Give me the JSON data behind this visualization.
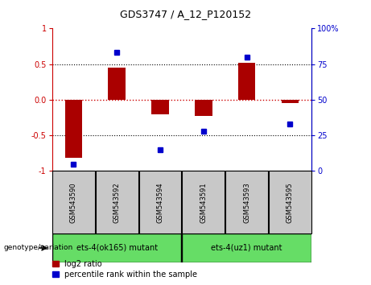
{
  "title": "GDS3747 / A_12_P120152",
  "samples": [
    "GSM543590",
    "GSM543592",
    "GSM543594",
    "GSM543591",
    "GSM543593",
    "GSM543595"
  ],
  "log2_ratio": [
    -0.82,
    0.45,
    -0.2,
    -0.23,
    0.52,
    -0.05
  ],
  "percentile_rank": [
    5,
    83,
    15,
    28,
    80,
    33
  ],
  "group1_indices": [
    0,
    1,
    2
  ],
  "group2_indices": [
    3,
    4,
    5
  ],
  "group1_label": "ets-4(ok165) mutant",
  "group2_label": "ets-4(uz1) mutant",
  "group_row_label": "genotype/variation",
  "legend_red": "log2 ratio",
  "legend_blue": "percentile rank within the sample",
  "ylim_left": [
    -1,
    1
  ],
  "ylim_right": [
    0,
    100
  ],
  "bar_color": "#aa0000",
  "dot_color": "#0000cc",
  "zero_line_color": "#cc0000",
  "background_label": "#c8c8c8",
  "group1_bg": "#66dd66",
  "group2_bg": "#66dd66",
  "title_fontsize": 9,
  "tick_fontsize": 7,
  "sample_fontsize": 6,
  "group_fontsize": 7,
  "legend_fontsize": 7
}
